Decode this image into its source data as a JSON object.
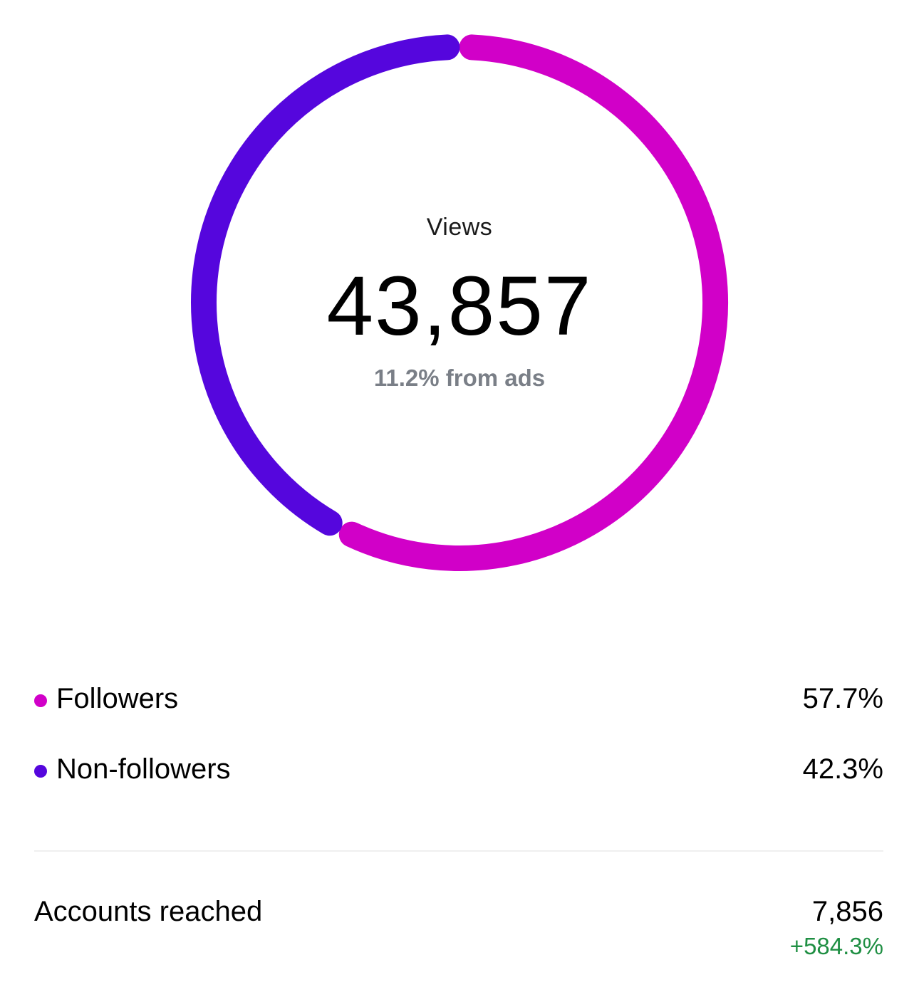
{
  "views": {
    "label": "Views",
    "value": "43,857",
    "subtext": "11.2% from ads"
  },
  "audience": [
    {
      "label": "Followers",
      "value": "57.7%",
      "percent": 57.7,
      "color": "#d100c8"
    },
    {
      "label": "Non-followers",
      "value": "42.3%",
      "percent": 42.3,
      "color": "#5506dd"
    }
  ],
  "reach": {
    "label": "Accounts reached",
    "value": "7,856",
    "change": "+584.3%",
    "change_color": "#1f8f43"
  }
}
